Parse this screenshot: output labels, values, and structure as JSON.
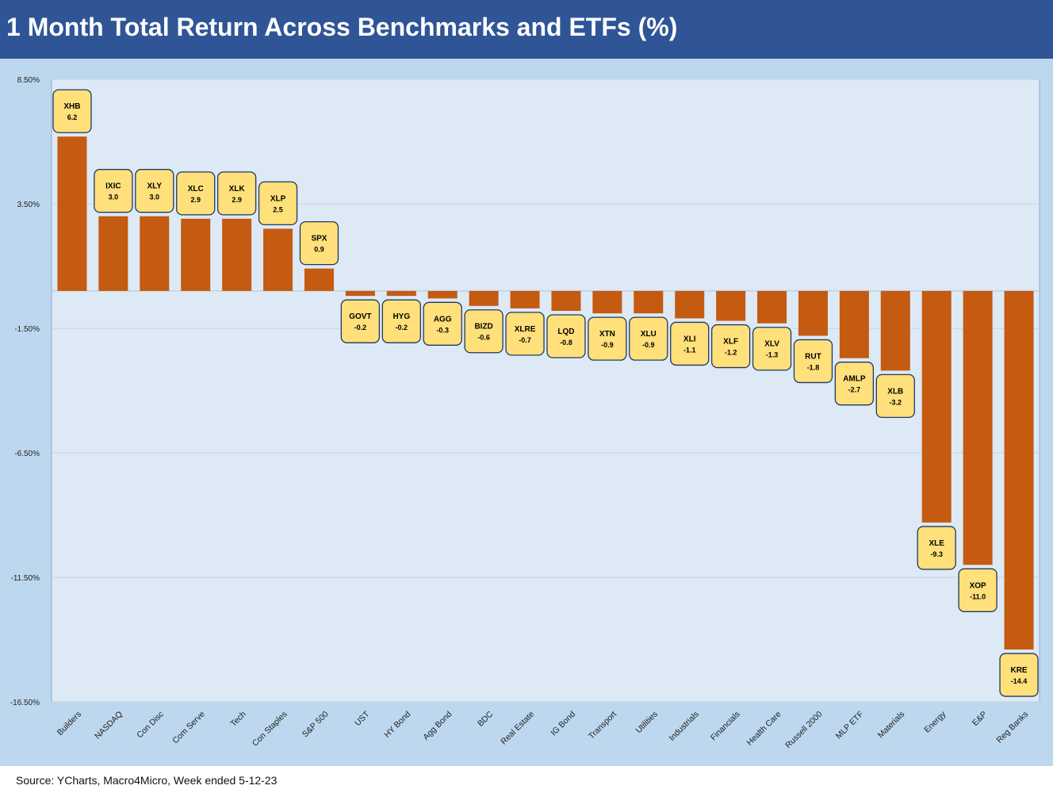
{
  "title": "1 Month Total Return Across Benchmarks and ETFs (%)",
  "source": "Source: YCharts, Macro4Micro, Week ended 5-12-23",
  "colors": {
    "title_bg": "#2f5597",
    "chart_bg": "#bdd7ee",
    "plot_bg": "#dde9f5",
    "bar": "#c55a11",
    "label_fill": "#ffe07a",
    "label_border": "#1f3864"
  },
  "chart_data": {
    "type": "bar",
    "title": "1 Month Total Return Across Benchmarks and ETFs (%)",
    "xlabel": "",
    "ylabel": "",
    "ylim": [
      -16.5,
      8.5
    ],
    "yticks": [
      8.5,
      3.5,
      -1.5,
      -6.5,
      -11.5,
      -16.5
    ],
    "ytick_labels": [
      "8.50%",
      "3.50%",
      "-1.50%",
      "-6.50%",
      "-11.50%",
      "-16.50%"
    ],
    "grid": true,
    "categories": [
      "Builders",
      "NASDAQ",
      "Con Disc",
      "Com Serve",
      "Tech",
      "Con Staples",
      "S&P 500",
      "UST",
      "HY Bond",
      "Agg Bond",
      "BDC",
      "Real Estate",
      "IG Bond",
      "Transport",
      "Utilities",
      "Industrials",
      "Financials",
      "Health Care",
      "Russell 2000",
      "MLP ETF",
      "Materials",
      "Energy",
      "E&P",
      "Reg Banks"
    ],
    "tickers": [
      "XHB",
      "IXIC",
      "XLY",
      "XLC",
      "XLK",
      "XLP",
      "SPX",
      "GOVT",
      "HYG",
      "AGG",
      "BIZD",
      "XLRE",
      "LQD",
      "XTN",
      "XLU",
      "XLI",
      "XLF",
      "XLV",
      "RUT",
      "AMLP",
      "XLB",
      "XLE",
      "XOP",
      "KRE"
    ],
    "value_labels": [
      "6.2",
      "3.0",
      "3.0",
      "2.9",
      "2.9",
      "2.5",
      "0.9",
      "-0.2",
      "-0.2",
      "-0.3",
      "-0.6",
      "-0.7",
      "-0.8",
      "-0.9",
      "-0.9",
      "-1.1",
      "-1.2",
      "-1.3",
      "-1.8",
      "-2.7",
      "-3.2",
      "-9.3",
      "-11.0",
      "-14.4"
    ],
    "values": [
      6.2,
      3.0,
      3.0,
      2.9,
      2.9,
      2.5,
      0.9,
      -0.2,
      -0.2,
      -0.3,
      -0.6,
      -0.7,
      -0.8,
      -0.9,
      -0.9,
      -1.1,
      -1.2,
      -1.3,
      -1.8,
      -2.7,
      -3.2,
      -9.3,
      -11.0,
      -14.4
    ]
  }
}
